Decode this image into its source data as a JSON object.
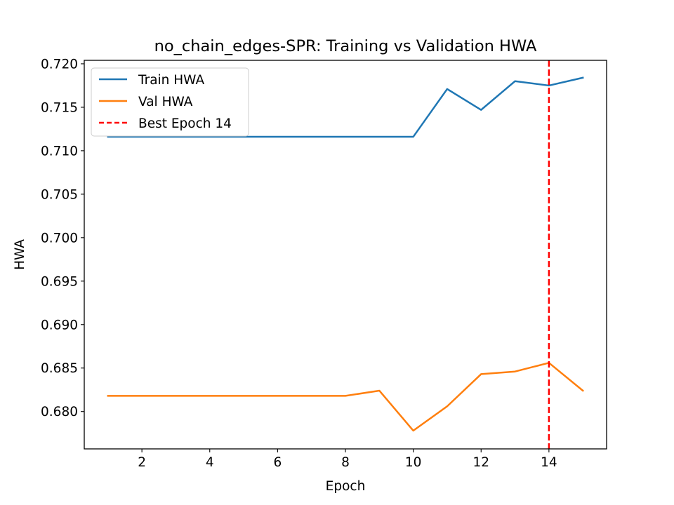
{
  "chart_data": {
    "type": "line",
    "title": "no_chain_edges-SPR: Training vs Validation HWA",
    "xlabel": "Epoch",
    "ylabel": "HWA",
    "xlim": [
      0.3,
      15.7
    ],
    "ylim": [
      0.6757,
      0.7204
    ],
    "xticks": [
      2,
      4,
      6,
      8,
      10,
      12,
      14
    ],
    "xtick_labels": [
      "2",
      "4",
      "6",
      "8",
      "10",
      "12",
      "14"
    ],
    "yticks": [
      0.68,
      0.685,
      0.69,
      0.695,
      0.7,
      0.705,
      0.71,
      0.715,
      0.72
    ],
    "ytick_labels": [
      "0.680",
      "0.685",
      "0.690",
      "0.695",
      "0.700",
      "0.705",
      "0.710",
      "0.715",
      "0.720"
    ],
    "x": [
      1,
      2,
      3,
      4,
      5,
      6,
      7,
      8,
      9,
      10,
      11,
      12,
      13,
      14,
      15
    ],
    "series": [
      {
        "name": "Train HWA",
        "color": "#1f77b4",
        "values": [
          0.7116,
          0.7116,
          0.7116,
          0.7116,
          0.7116,
          0.7116,
          0.7116,
          0.7116,
          0.7116,
          0.7116,
          0.7171,
          0.7147,
          0.718,
          0.7175,
          0.7184
        ]
      },
      {
        "name": "Val HWA",
        "color": "#ff7f0e",
        "values": [
          0.6818,
          0.6818,
          0.6818,
          0.6818,
          0.6818,
          0.6818,
          0.6818,
          0.6818,
          0.6824,
          0.6778,
          0.6806,
          0.6843,
          0.6846,
          0.6856,
          0.6824
        ]
      }
    ],
    "vline": {
      "x": 14,
      "label": "Best Epoch 14",
      "color": "#ff0000",
      "style": "dashed"
    },
    "grid": false,
    "legend_position": "top-left"
  }
}
